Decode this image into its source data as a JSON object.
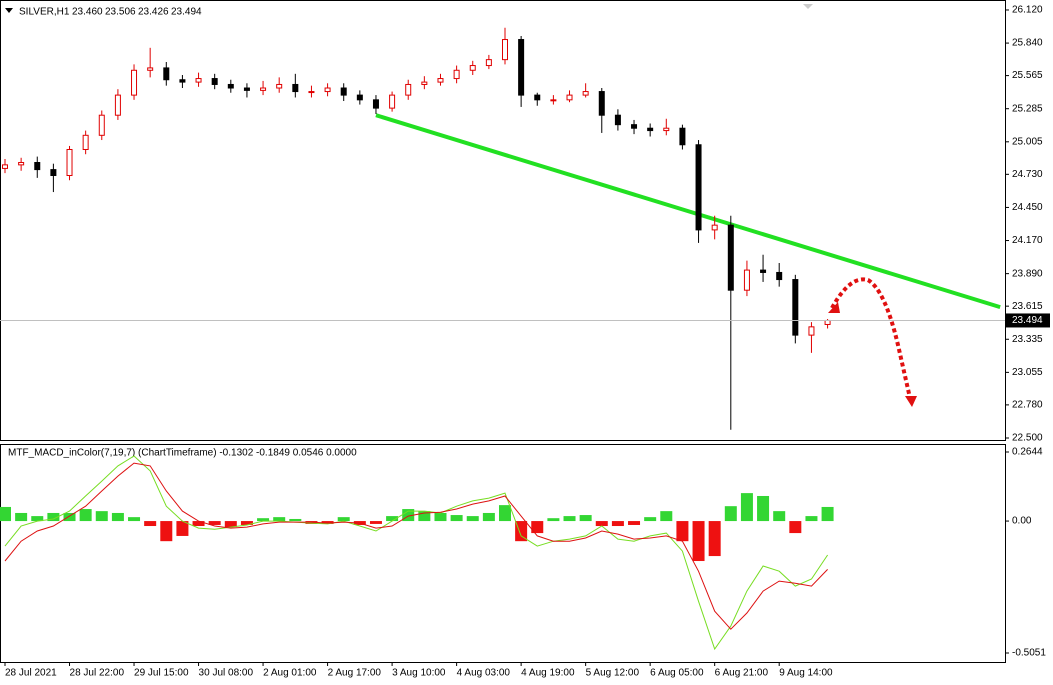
{
  "chart_data": [
    {
      "type": "candlestick",
      "title": "SILVER,H1",
      "title_values": [
        "23.460",
        "23.506",
        "23.426",
        "23.494"
      ],
      "up_color": "#e00000",
      "down_color": "#000000",
      "xlim": [
        0,
        62
      ],
      "xticks": [
        {
          "value": 0,
          "label": "28 Jul 2021"
        },
        {
          "value": 4,
          "label": "28 Jul 22:00"
        },
        {
          "value": 8,
          "label": "29 Jul 15:00"
        },
        {
          "value": 12,
          "label": "30 Jul 08:00"
        },
        {
          "value": 16,
          "label": "2 Aug 01:00"
        },
        {
          "value": 20,
          "label": "2 Aug 17:00"
        },
        {
          "value": 24,
          "label": "3 Aug 10:00"
        },
        {
          "value": 28,
          "label": "4 Aug 03:00"
        },
        {
          "value": 32,
          "label": "4 Aug 19:00"
        },
        {
          "value": 36,
          "label": "5 Aug 12:00"
        },
        {
          "value": 40,
          "label": "6 Aug 05:00"
        },
        {
          "value": 44,
          "label": "6 Aug 21:00"
        },
        {
          "value": 48,
          "label": "9 Aug 14:00"
        }
      ],
      "ylim": [
        22.483,
        26.179
      ],
      "yticks": [
        {
          "value": 26.12,
          "label": "26.120"
        },
        {
          "value": 25.84,
          "label": "25.840"
        },
        25.565,
        25.285,
        25.005,
        {
          "value": 24.73,
          "label": "24.730"
        },
        {
          "value": 24.45,
          "label": "24.450"
        },
        {
          "value": 24.17,
          "label": "24.170"
        },
        {
          "value": 23.89,
          "label": "23.890"
        },
        23.615,
        23.335,
        23.055,
        {
          "value": 22.78,
          "label": "22.780"
        },
        {
          "value": 22.5,
          "label": "22.500"
        }
      ],
      "candles": {
        "open": [
          24.78,
          24.81,
          24.83,
          24.77,
          24.72,
          24.94,
          25.06,
          25.23,
          25.4,
          25.61,
          25.63,
          25.53,
          25.51,
          25.54,
          25.49,
          25.46,
          25.44,
          25.46,
          25.49,
          25.43,
          25.43,
          25.46,
          25.4,
          25.36,
          25.29,
          25.4,
          25.49,
          25.51,
          25.54,
          25.61,
          25.65,
          25.7,
          25.87,
          25.4,
          25.36,
          25.36,
          25.4,
          25.43,
          25.23,
          25.15,
          25.12,
          25.1,
          25.12,
          24.98,
          24.26,
          24.3,
          23.75,
          23.92,
          23.9,
          23.84,
          23.37,
          23.46
        ],
        "high": [
          24.86,
          24.87,
          24.88,
          24.82,
          24.97,
          25.1,
          25.27,
          25.45,
          25.66,
          25.8,
          25.68,
          25.57,
          25.59,
          25.58,
          25.53,
          25.5,
          25.52,
          25.55,
          25.58,
          25.48,
          25.5,
          25.5,
          25.44,
          25.4,
          25.43,
          25.53,
          25.56,
          25.58,
          25.65,
          25.69,
          25.74,
          25.97,
          25.9,
          25.42,
          25.4,
          25.44,
          25.5,
          25.46,
          25.28,
          25.19,
          25.16,
          25.2,
          25.15,
          25.02,
          24.38,
          24.38,
          24.0,
          24.05,
          23.98,
          23.88,
          23.48,
          23.506
        ],
        "low": [
          24.74,
          24.76,
          24.7,
          24.58,
          24.68,
          24.9,
          25.02,
          25.19,
          25.36,
          25.55,
          25.48,
          25.46,
          25.47,
          25.45,
          25.42,
          25.38,
          25.4,
          25.42,
          25.38,
          25.38,
          25.39,
          25.35,
          25.32,
          25.24,
          25.26,
          25.36,
          25.45,
          25.48,
          25.5,
          25.57,
          25.62,
          25.66,
          25.3,
          25.31,
          25.32,
          25.34,
          25.38,
          25.08,
          25.1,
          25.07,
          25.05,
          25.06,
          24.94,
          24.15,
          24.18,
          22.57,
          23.7,
          23.82,
          23.78,
          23.3,
          23.22,
          23.426
        ],
        "close": [
          24.81,
          24.83,
          24.77,
          24.72,
          24.94,
          25.06,
          25.23,
          25.4,
          25.61,
          25.63,
          25.53,
          25.51,
          25.54,
          25.49,
          25.46,
          25.44,
          25.46,
          25.49,
          25.43,
          25.43,
          25.46,
          25.4,
          25.36,
          25.29,
          25.4,
          25.49,
          25.51,
          25.54,
          25.61,
          25.65,
          25.7,
          25.87,
          25.4,
          25.36,
          25.36,
          25.4,
          25.43,
          25.23,
          25.15,
          25.12,
          25.1,
          25.12,
          24.98,
          24.26,
          24.3,
          23.75,
          23.92,
          23.9,
          23.84,
          23.37,
          23.44,
          23.494
        ]
      },
      "trendline": {
        "x": [
          23,
          61.7
        ],
        "y": [
          25.23,
          23.607
        ],
        "color": "#22e022"
      }
    },
    {
      "type": "macd",
      "title": "MTF_MACD_inColor(7,19,7) (ChartTimeframe) -0.1302 -0.1849 0.0546 0.0000",
      "ylim": [
        -0.5396,
        0.2912
      ],
      "yticks": [
        0.2644,
        {
          "value": 0,
          "label": "0.00"
        },
        -0.5051
      ],
      "positive_color": "#33d633",
      "negative_color": "#ee1111",
      "histogram": [
        0.054,
        0.031,
        0.019,
        0.031,
        0.031,
        0.046,
        0.038,
        0.031,
        0.015,
        -0.019,
        -0.077,
        -0.057,
        -0.019,
        -0.015,
        -0.023,
        -0.015,
        0.011,
        0.015,
        0.008,
        -0.011,
        -0.011,
        0.015,
        -0.015,
        -0.011,
        0.019,
        0.046,
        0.038,
        0.031,
        0.023,
        0.019,
        0.031,
        0.061,
        -0.077,
        -0.046,
        0.011,
        0.019,
        0.023,
        -0.019,
        -0.019,
        -0.015,
        0.015,
        0.038,
        -0.077,
        -0.153,
        -0.134,
        0.057,
        0.107,
        0.096,
        0.038,
        -0.046,
        0.019,
        0.054
      ],
      "series": [
        {
          "color": "#77dd22",
          "values": [
            -0.096,
            -0.019,
            0,
            0.008,
            0.038,
            0.096,
            0.153,
            0.211,
            0.249,
            0.192,
            0.057,
            0,
            -0.027,
            -0.031,
            -0.023,
            -0.015,
            0,
            0,
            -0.004,
            -0.008,
            -0.011,
            0,
            -0.019,
            -0.038,
            0,
            0.038,
            0.038,
            0.031,
            0.057,
            0.077,
            0.088,
            0.107,
            -0.057,
            -0.096,
            -0.077,
            -0.069,
            -0.057,
            -0.019,
            -0.069,
            -0.077,
            -0.057,
            -0.046,
            -0.115,
            -0.307,
            -0.49,
            -0.402,
            -0.268,
            -0.172,
            -0.192,
            -0.249,
            -0.222,
            -0.13
          ]
        },
        {
          "color": "#dd1111",
          "values": [
            -0.153,
            -0.077,
            -0.038,
            -0.019,
            0.019,
            0.057,
            0.115,
            0.172,
            0.222,
            0.211,
            0.115,
            0.038,
            0,
            -0.019,
            -0.027,
            -0.023,
            -0.011,
            -0.004,
            -0.004,
            -0.004,
            -0.008,
            -0.004,
            -0.008,
            -0.027,
            -0.019,
            0.019,
            0.031,
            0.034,
            0.046,
            0.065,
            0.077,
            0.096,
            0.019,
            -0.057,
            -0.077,
            -0.077,
            -0.065,
            -0.038,
            -0.05,
            -0.069,
            -0.065,
            -0.057,
            -0.077,
            -0.192,
            -0.345,
            -0.414,
            -0.352,
            -0.268,
            -0.23,
            -0.238,
            -0.249,
            -0.185
          ]
        }
      ]
    }
  ]
}
